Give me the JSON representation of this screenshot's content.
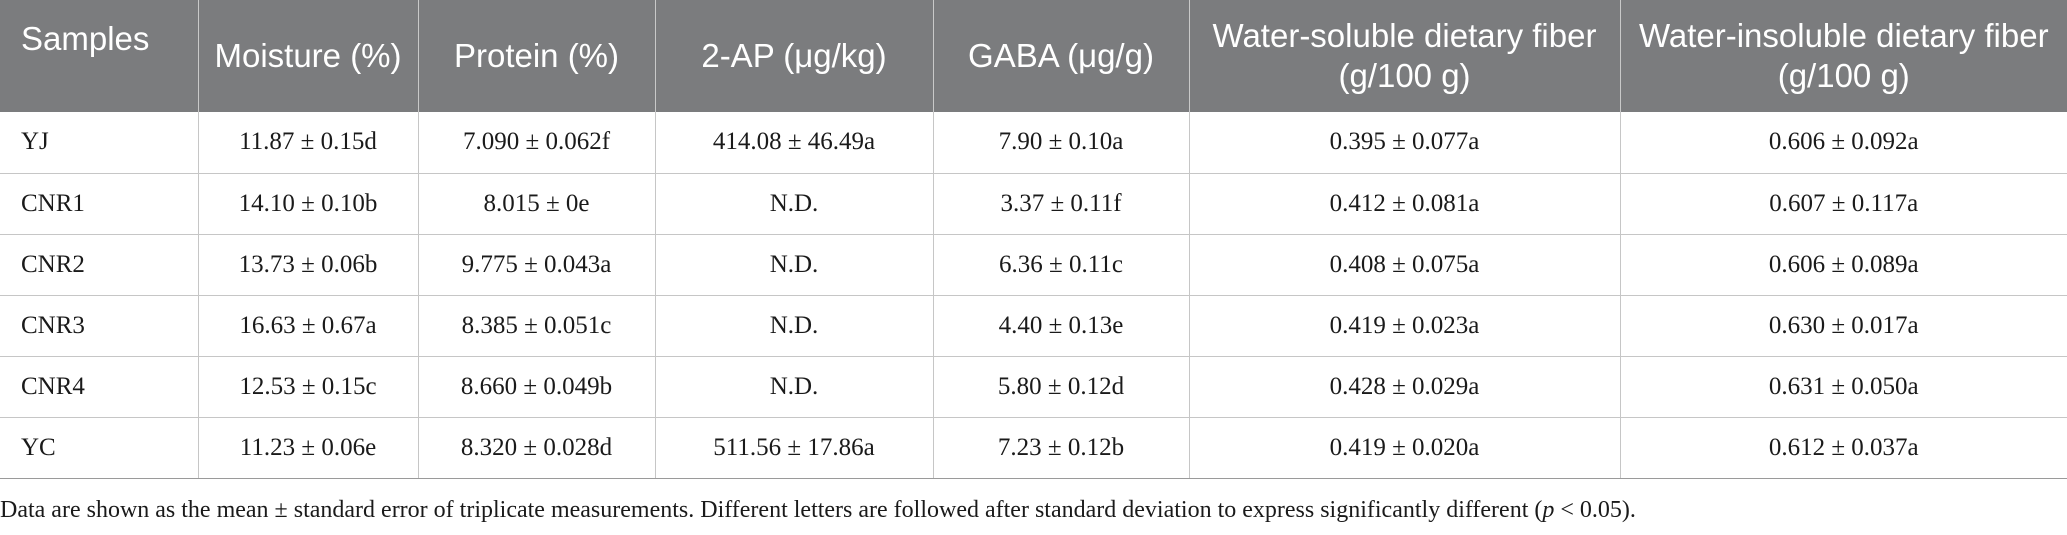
{
  "table": {
    "headers": [
      "Samples",
      "Moisture (%)",
      "Protein (%)",
      "2-AP (μg/kg)",
      "GABA (μg/g)",
      "Water-soluble dietary fiber (g/100 g)",
      "Water-insoluble dietary fiber (g/100 g)"
    ],
    "rows": [
      [
        "YJ",
        "11.87 ± 0.15d",
        "7.090 ± 0.062f",
        "414.08 ± 46.49a",
        "7.90 ± 0.10a",
        "0.395 ± 0.077a",
        "0.606 ± 0.092a"
      ],
      [
        "CNR1",
        "14.10 ± 0.10b",
        "8.015 ± 0e",
        "N.D.",
        "3.37 ± 0.11f",
        "0.412 ± 0.081a",
        "0.607 ± 0.117a"
      ],
      [
        "CNR2",
        "13.73 ± 0.06b",
        "9.775 ± 0.043a",
        "N.D.",
        "6.36 ± 0.11c",
        "0.408 ± 0.075a",
        "0.606 ± 0.089a"
      ],
      [
        "CNR3",
        "16.63 ± 0.67a",
        "8.385 ± 0.051c",
        "N.D.",
        "4.40 ± 0.13e",
        "0.419 ± 0.023a",
        "0.630 ± 0.017a"
      ],
      [
        "CNR4",
        "12.53 ± 0.15c",
        "8.660 ± 0.049b",
        "N.D.",
        "5.80 ± 0.12d",
        "0.428 ± 0.029a",
        "0.631 ± 0.050a"
      ],
      [
        "YC",
        "11.23 ± 0.06e",
        "8.320 ± 0.028d",
        "511.56 ± 17.86a",
        "7.23 ± 0.12b",
        "0.419 ± 0.020a",
        "0.612 ± 0.037a"
      ]
    ]
  },
  "footnote": {
    "before": "Data are shown as the mean ± standard error of triplicate measurements. Different letters are followed after standard deviation to express significantly different (",
    "italic": "p",
    "after": " < 0.05)."
  },
  "colors": {
    "header_bg": "#7b7c7e",
    "header_text": "#ffffff",
    "grid": "#c6c6c6"
  }
}
